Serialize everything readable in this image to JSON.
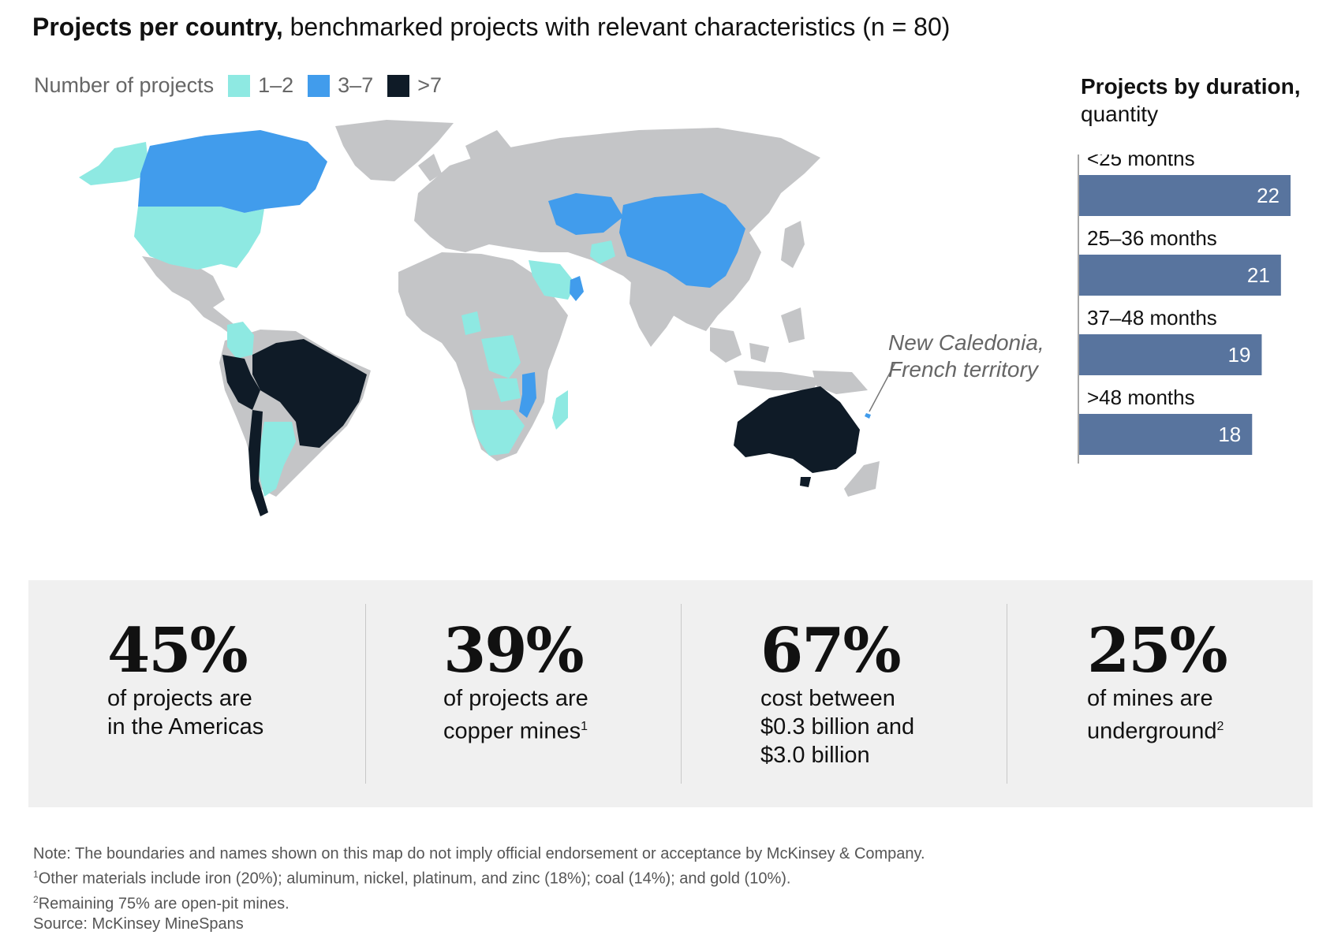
{
  "header": {
    "title_bold": "Projects per country,",
    "title_rest": " benchmarked projects with relevant characteristics (n = 80)"
  },
  "legend": {
    "label": "Number of projects",
    "items": [
      {
        "label": "1–2",
        "color": "#8ee9e2"
      },
      {
        "label": "3–7",
        "color": "#419cec"
      },
      {
        "label": ">7",
        "color": "#0f1b27"
      }
    ]
  },
  "map": {
    "base_color": "#c4c5c7",
    "annotation_line1": "New Caledonia,",
    "annotation_line2": "French territory",
    "countries": {
      "1–2": [
        "United States",
        "Alaska",
        "Colombia",
        "Argentina",
        "Saudi Arabia",
        "Afghanistan",
        "DR Congo",
        "Zambia",
        "South Africa",
        "Madagascar",
        "Nigeria"
      ],
      "3–7": [
        "Canada",
        "Kazakhstan",
        "Mongolia",
        "China",
        "Oman",
        "Mozambique",
        "New Caledonia"
      ],
      ">7": [
        "Brazil",
        "Peru",
        "Chile",
        "Australia"
      ]
    }
  },
  "duration": {
    "title_bold": "Projects by duration,",
    "title_rest": "quantity"
  },
  "chart_data": {
    "type": "bar",
    "orientation": "horizontal",
    "categories": [
      "<25 months",
      "25–36 months",
      "37–48 months",
      ">48 months"
    ],
    "values": [
      22,
      21,
      19,
      18
    ],
    "bar_color": "#58749e",
    "xlim": [
      0,
      22
    ]
  },
  "stats": [
    {
      "value": "45%",
      "line1": "of projects are",
      "line2": "in the Americas",
      "line3": "",
      "sup": ""
    },
    {
      "value": "39%",
      "line1": "of projects are",
      "line2": "copper mines",
      "line3": "",
      "sup": "1"
    },
    {
      "value": "67%",
      "line1": "cost between",
      "line2": "$0.3 billion and",
      "line3": "$3.0 billion",
      "sup": ""
    },
    {
      "value": "25%",
      "line1": "of mines are",
      "line2": "underground",
      "line3": "",
      "sup": "2"
    }
  ],
  "notes": {
    "note": "Note: The boundaries and names shown on this map do not imply official endorsement or acceptance by McKinsey & Company.",
    "fn1_mark": "1",
    "fn1": "Other materials include iron (20%); aluminum, nickel, platinum, and zinc (18%); coal (14%); and gold (10%).",
    "fn2_mark": "2",
    "fn2": "Remaining 75% are open-pit mines.",
    "source": "Source: McKinsey MineSpans"
  }
}
